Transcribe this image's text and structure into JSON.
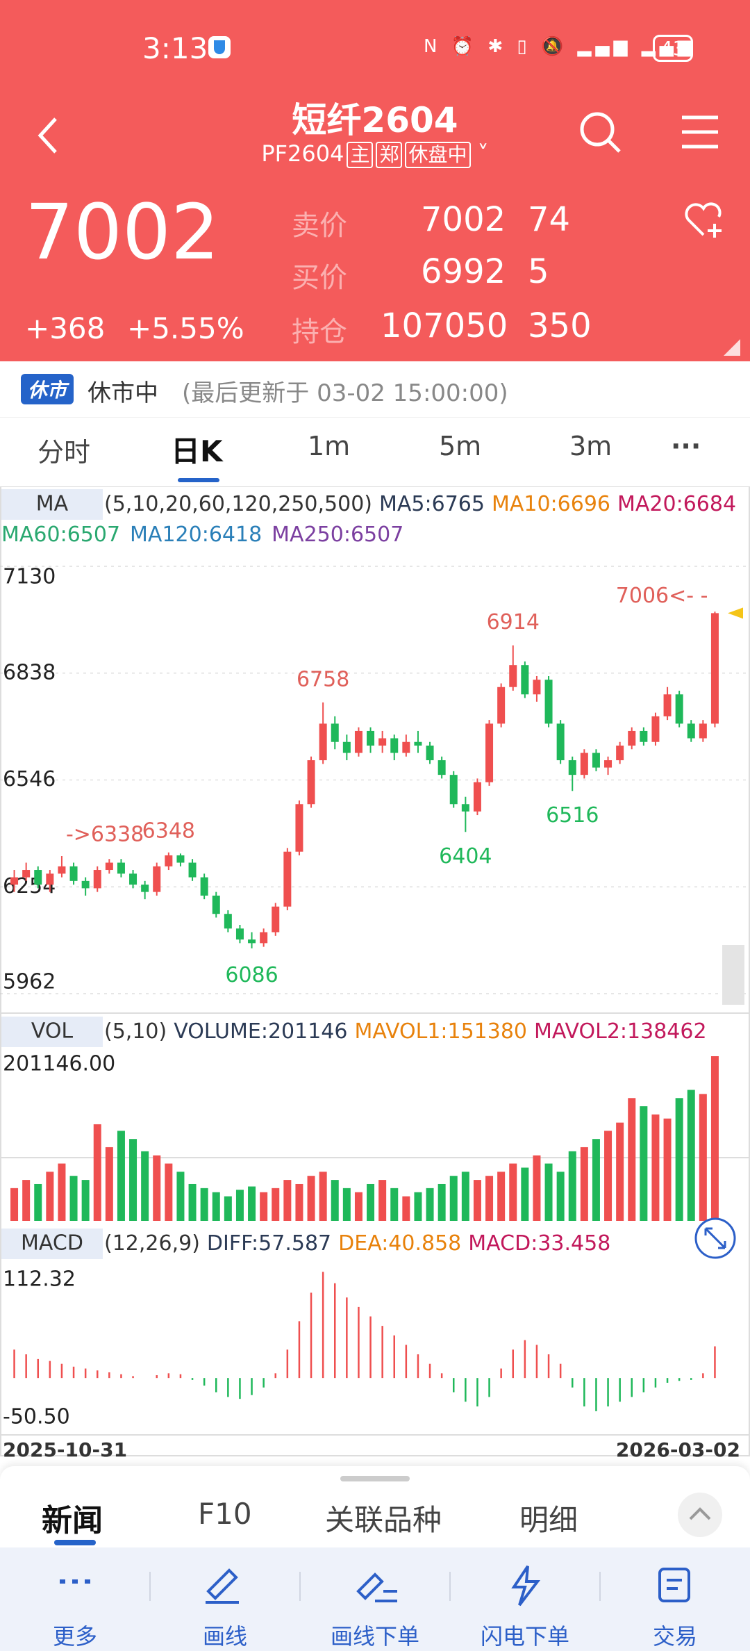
{
  "status": {
    "time": "3:13",
    "battery": "43"
  },
  "header": {
    "title": "短纤2604",
    "code": "PF2604",
    "tags": [
      "主",
      "郑",
      "休盘中"
    ]
  },
  "quote": {
    "price": "7002",
    "change": "+368",
    "pct": "+5.55%",
    "rows": [
      {
        "label": "卖价",
        "price": "7002",
        "qty": "74"
      },
      {
        "label": "买价",
        "price": "6992",
        "qty": "5"
      },
      {
        "label": "持仓",
        "price": "107050",
        "qty": "350"
      }
    ]
  },
  "market": {
    "badge": "休市",
    "state": "休市中",
    "updated": "(最后更新于 03-02 15:00:00)"
  },
  "tabs": [
    "分时",
    "日K",
    "1m",
    "5m",
    "3m"
  ],
  "ma_legend": {
    "name": "MA",
    "params": "(5,10,20,60,120,250,500)",
    "items": [
      {
        "text": "MA5:6765",
        "color": "#2b3a55"
      },
      {
        "text": "MA10:6696",
        "color": "#e8820c"
      },
      {
        "text": "MA20:6684",
        "color": "#c2185b"
      },
      {
        "text": "MA60:6507",
        "color": "#2aa870"
      },
      {
        "text": "MA120:6418",
        "color": "#2a7fb8"
      },
      {
        "text": "MA250:6507",
        "color": "#7b3fa0"
      }
    ]
  },
  "price_chart": {
    "type": "candlestick",
    "ylim": [
      5962,
      7130
    ],
    "yticks": [
      7130,
      6838,
      6546,
      6254,
      5962
    ],
    "grid": true,
    "up_color": "#ef4f4f",
    "down_color": "#1fb85a",
    "candles": [
      [
        6260,
        6300,
        6240,
        6280
      ],
      [
        6280,
        6320,
        6270,
        6300
      ],
      [
        6300,
        6310,
        6250,
        6260
      ],
      [
        6260,
        6300,
        6240,
        6290
      ],
      [
        6290,
        6338,
        6280,
        6310
      ],
      [
        6310,
        6320,
        6260,
        6270
      ],
      [
        6270,
        6280,
        6230,
        6250
      ],
      [
        6250,
        6310,
        6240,
        6300
      ],
      [
        6300,
        6330,
        6290,
        6320
      ],
      [
        6320,
        6330,
        6280,
        6290
      ],
      [
        6290,
        6300,
        6250,
        6260
      ],
      [
        6260,
        6270,
        6220,
        6240
      ],
      [
        6240,
        6320,
        6230,
        6310
      ],
      [
        6310,
        6348,
        6300,
        6340
      ],
      [
        6340,
        6345,
        6310,
        6320
      ],
      [
        6320,
        6330,
        6270,
        6280
      ],
      [
        6280,
        6290,
        6220,
        6230
      ],
      [
        6230,
        6240,
        6170,
        6180
      ],
      [
        6180,
        6190,
        6130,
        6140
      ],
      [
        6140,
        6150,
        6100,
        6110
      ],
      [
        6110,
        6130,
        6086,
        6100
      ],
      [
        6100,
        6140,
        6090,
        6130
      ],
      [
        6130,
        6210,
        6120,
        6200
      ],
      [
        6200,
        6360,
        6190,
        6350
      ],
      [
        6350,
        6490,
        6340,
        6480
      ],
      [
        6480,
        6610,
        6470,
        6600
      ],
      [
        6600,
        6758,
        6590,
        6700
      ],
      [
        6700,
        6720,
        6630,
        6650
      ],
      [
        6650,
        6670,
        6600,
        6620
      ],
      [
        6620,
        6690,
        6610,
        6680
      ],
      [
        6680,
        6690,
        6620,
        6640
      ],
      [
        6640,
        6680,
        6620,
        6660
      ],
      [
        6660,
        6670,
        6600,
        6620
      ],
      [
        6620,
        6670,
        6610,
        6650
      ],
      [
        6650,
        6680,
        6620,
        6640
      ],
      [
        6640,
        6650,
        6590,
        6600
      ],
      [
        6600,
        6610,
        6550,
        6560
      ],
      [
        6560,
        6570,
        6470,
        6480
      ],
      [
        6480,
        6500,
        6404,
        6460
      ],
      [
        6460,
        6550,
        6450,
        6540
      ],
      [
        6540,
        6710,
        6530,
        6700
      ],
      [
        6700,
        6810,
        6690,
        6800
      ],
      [
        6800,
        6914,
        6790,
        6860
      ],
      [
        6860,
        6870,
        6770,
        6780
      ],
      [
        6780,
        6830,
        6760,
        6820
      ],
      [
        6820,
        6830,
        6690,
        6700
      ],
      [
        6700,
        6710,
        6590,
        6600
      ],
      [
        6600,
        6610,
        6516,
        6560
      ],
      [
        6560,
        6630,
        6550,
        6620
      ],
      [
        6620,
        6630,
        6570,
        6580
      ],
      [
        6580,
        6610,
        6560,
        6600
      ],
      [
        6600,
        6650,
        6590,
        6640
      ],
      [
        6640,
        6690,
        6630,
        6680
      ],
      [
        6680,
        6690,
        6640,
        6650
      ],
      [
        6650,
        6730,
        6640,
        6720
      ],
      [
        6720,
        6800,
        6710,
        6780
      ],
      [
        6780,
        6790,
        6690,
        6700
      ],
      [
        6700,
        6710,
        6650,
        6660
      ],
      [
        6660,
        6710,
        6650,
        6700
      ],
      [
        6700,
        7006,
        6690,
        7002
      ]
    ],
    "annotations": [
      {
        "text": "6758",
        "color": "#e0605a"
      },
      {
        "text": "6914",
        "color": "#e0605a"
      },
      {
        "text": "6348",
        "color": "#e0605a"
      },
      {
        "text": "->6338",
        "color": "#e0605a"
      },
      {
        "text": "7006<- -",
        "color": "#e0605a"
      },
      {
        "text": "6086",
        "color": "#1fb85a"
      },
      {
        "text": "6404",
        "color": "#1fb85a"
      },
      {
        "text": "6516",
        "color": "#1fb85a"
      }
    ]
  },
  "volume": {
    "name": "VOL",
    "params": "(5,10)",
    "items": [
      {
        "text": "VOLUME:201146",
        "color": "#2b3a55"
      },
      {
        "text": "MAVOL1:151380",
        "color": "#e8820c"
      },
      {
        "text": "MAVOL2:138462",
        "color": "#c2185b"
      }
    ],
    "top_label": "201146.00",
    "ylim": [
      0,
      201146
    ],
    "values": [
      40000,
      50000,
      45000,
      60000,
      70000,
      55000,
      50000,
      118000,
      90000,
      110000,
      100000,
      85000,
      80000,
      70000,
      60000,
      45000,
      40000,
      35000,
      30000,
      38000,
      42000,
      35000,
      40000,
      50000,
      45000,
      55000,
      60000,
      50000,
      40000,
      35000,
      45000,
      50000,
      40000,
      30000,
      35000,
      40000,
      45000,
      55000,
      60000,
      50000,
      55000,
      60000,
      70000,
      65000,
      80000,
      70000,
      60000,
      85000,
      90000,
      100000,
      110000,
      120000,
      150000,
      140000,
      130000,
      125000,
      150000,
      160000,
      155000,
      201146
    ]
  },
  "macd": {
    "name": "MACD",
    "params": "(12,26,9)",
    "items": [
      {
        "text": "DIFF:57.587",
        "color": "#2b3a55"
      },
      {
        "text": "DEA:40.858",
        "color": "#e8820c"
      },
      {
        "text": "MACD:33.458",
        "color": "#c2185b"
      }
    ],
    "top_label": "112.32",
    "bottom_label": "-50.50",
    "ylim": [
      -50.5,
      112.32
    ],
    "values": [
      30,
      25,
      20,
      18,
      15,
      12,
      10,
      8,
      6,
      4,
      2,
      0,
      3,
      5,
      4,
      -2,
      -8,
      -15,
      -20,
      -22,
      -18,
      -10,
      5,
      30,
      60,
      90,
      112,
      100,
      85,
      75,
      65,
      55,
      45,
      35,
      25,
      15,
      5,
      -15,
      -25,
      -30,
      -20,
      10,
      30,
      40,
      35,
      25,
      15,
      -10,
      -30,
      -35,
      -30,
      -25,
      -20,
      -15,
      -10,
      -5,
      -3,
      -2,
      5,
      33.458
    ]
  },
  "dates": [
    "2025-10-31",
    "2026-03-02"
  ],
  "bottom_tabs": [
    "新闻",
    "F10",
    "关联品种",
    "明细"
  ],
  "nav": [
    "更多",
    "画线",
    "画线下单",
    "闪电下单",
    "交易"
  ]
}
